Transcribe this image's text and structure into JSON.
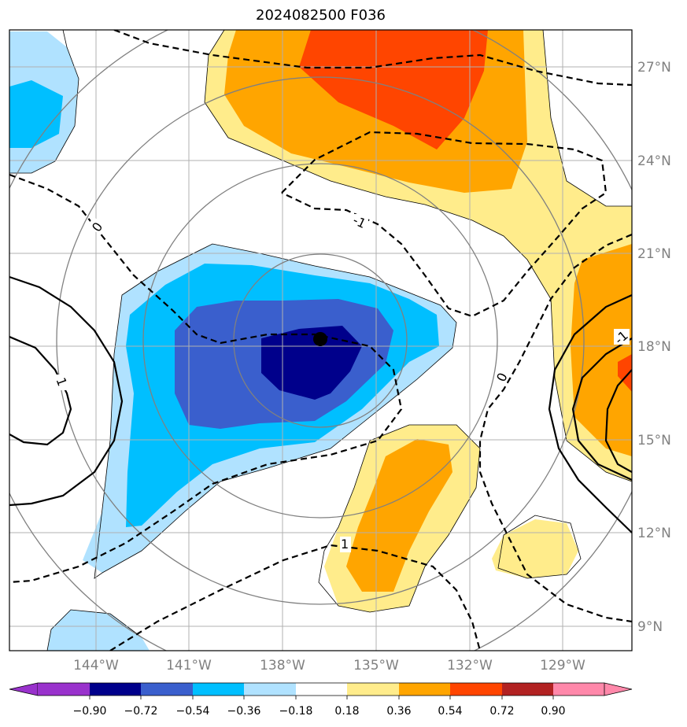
{
  "title": "2024082500 F036",
  "map": {
    "lon_labels": [
      "144°W",
      "141°W",
      "138°W",
      "135°W",
      "132°W",
      "129°W"
    ],
    "lat_labels": [
      "27°N",
      "24°N",
      "21°N",
      "18°N",
      "15°N",
      "12°N",
      "9°N"
    ],
    "grid": true,
    "contour_labels": [
      "0",
      "-1",
      "-1",
      "0",
      "1",
      "1"
    ],
    "center_marker": "storm-center-dot",
    "colors": {
      "tick_label": "#808080",
      "grid": "#b0b0b0",
      "range_rings": "#808080"
    }
  },
  "colorbar": {
    "tick_labels": [
      "−0.90",
      "−0.72",
      "−0.54",
      "−0.36",
      "−0.18",
      "0.18",
      "0.36",
      "0.54",
      "0.72",
      "0.90"
    ],
    "colors": [
      "#9932CC",
      "#00008B",
      "#3A5FCD",
      "#00BFFF",
      "#B0E2FF",
      "#FFFFFF",
      "#FFEC8B",
      "#FFA500",
      "#FF4500",
      "#B22222",
      "#FF88AA"
    ],
    "extend": "both"
  }
}
